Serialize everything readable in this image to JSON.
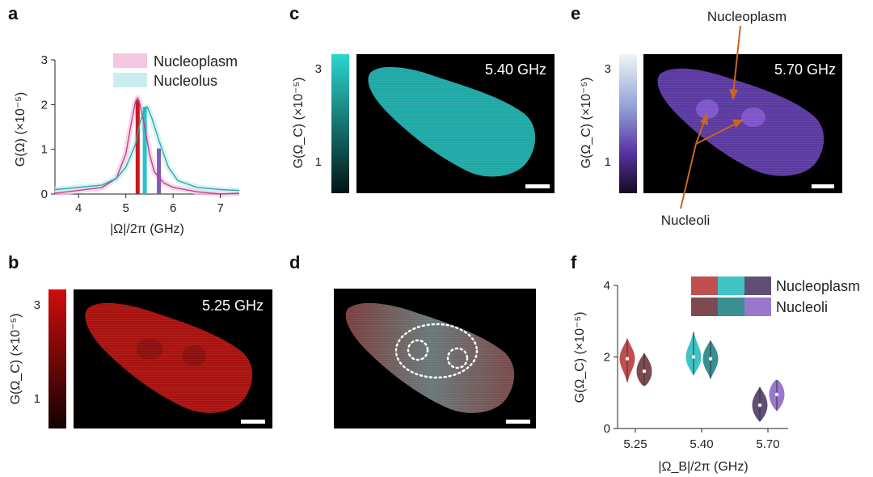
{
  "panels": {
    "a": "a",
    "b": "b",
    "c": "c",
    "d": "d",
    "e": "e",
    "f": "f"
  },
  "colors": {
    "nucleoplasm_fill": "#f5c6e0",
    "nucleolus_fill": "#c9eef0",
    "red": "#c9191e",
    "cyan": "#26c3c6",
    "purple": "#7b5cb8"
  },
  "image_c": {
    "freq": "5.40 GHz"
  },
  "image_b": {
    "freq": "5.25 GHz"
  },
  "image_e": {
    "freq": "5.70 GHz"
  },
  "colorbar_ticks": {
    "top": "3",
    "bottom": "1"
  },
  "annotations": {
    "nucleoplasm": "Nucleoplasm",
    "nucleoli": "Nucleoli"
  },
  "chart_data": [
    {
      "type": "line",
      "panel": "a",
      "xlabel": "|Ω|/2π (GHz)",
      "ylabel": "G(Ω) (×10⁻⁵)",
      "xlim": [
        3.5,
        7.4
      ],
      "ylim": [
        0,
        3
      ],
      "xticks": [
        4,
        5,
        6,
        7
      ],
      "yticks": [
        0,
        1,
        2,
        3
      ],
      "legend": [
        "Nucleoplasm",
        "Nucleolus"
      ],
      "legend_position": "top-right",
      "series": [
        {
          "name": "Nucleoplasm",
          "color": "#c2408d",
          "x": [
            3.5,
            4.0,
            4.5,
            4.8,
            5.0,
            5.1,
            5.2,
            5.25,
            5.3,
            5.4,
            5.5,
            5.6,
            5.8,
            6.0,
            6.5,
            7.0,
            7.4
          ],
          "y": [
            0.02,
            0.08,
            0.15,
            0.35,
            0.9,
            1.5,
            2.05,
            2.15,
            2.0,
            1.5,
            0.9,
            0.5,
            0.25,
            0.15,
            0.05,
            0.0,
            0.02
          ]
        },
        {
          "name": "Nucleolus",
          "color": "#2aa9ab",
          "x": [
            3.5,
            4.0,
            4.5,
            4.8,
            5.0,
            5.2,
            5.3,
            5.4,
            5.45,
            5.55,
            5.7,
            5.9,
            6.1,
            6.5,
            7.0,
            7.4
          ],
          "y": [
            0.1,
            0.15,
            0.2,
            0.35,
            0.6,
            1.1,
            1.6,
            1.9,
            1.95,
            1.7,
            1.2,
            0.6,
            0.3,
            0.15,
            0.1,
            0.08
          ]
        }
      ],
      "bars": [
        {
          "x": 5.25,
          "value": 2.1,
          "color": "#c9191e"
        },
        {
          "x": 5.4,
          "value": 1.95,
          "color": "#26c3c6"
        },
        {
          "x": 5.7,
          "value": 1.02,
          "color": "#7b5cb8"
        }
      ]
    },
    {
      "type": "violin",
      "panel": "f",
      "xlabel": "|Ω_B|/2π (GHz)",
      "ylabel": "G(Ω_C) (×10⁻⁵)",
      "categories": [
        "5.25",
        "5.40",
        "5.70"
      ],
      "ylim": [
        0,
        4
      ],
      "yticks": [
        0,
        2,
        4
      ],
      "legend": [
        "Nucleoplasm",
        "Nucleoli"
      ],
      "legend_position": "top-right",
      "series": [
        {
          "name": "Nucleoplasm",
          "values": [
            1.95,
            2.0,
            0.65
          ],
          "mins": [
            1.3,
            1.5,
            0.2
          ],
          "maxs": [
            2.5,
            2.7,
            1.15
          ],
          "colors": [
            "#c0504f",
            "#3fc3c5",
            "#5f4f75"
          ]
        },
        {
          "name": "Nucleoli",
          "values": [
            1.6,
            1.95,
            0.95
          ],
          "mins": [
            1.2,
            1.4,
            0.5
          ],
          "maxs": [
            2.1,
            2.45,
            1.35
          ],
          "colors": [
            "#7e4a52",
            "#3a8f92",
            "#9a77cc"
          ]
        }
      ]
    }
  ]
}
